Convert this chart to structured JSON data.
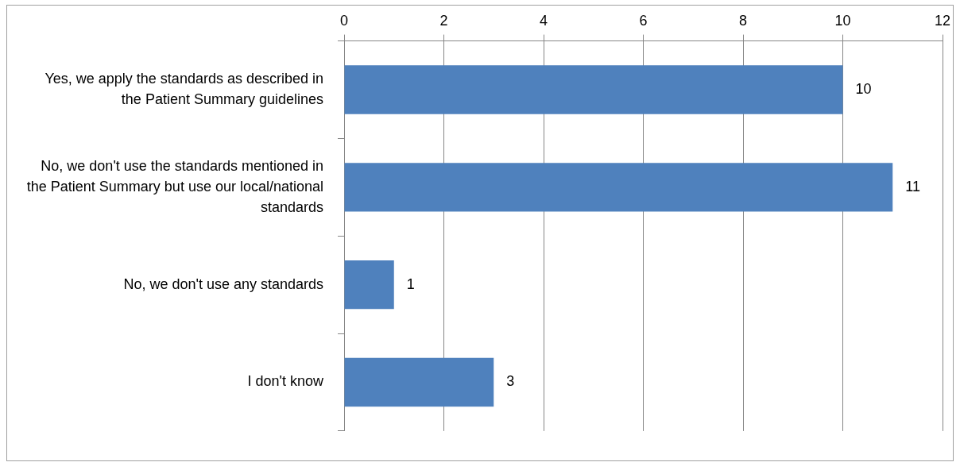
{
  "chart_data": {
    "type": "bar",
    "orientation": "horizontal",
    "categories": [
      "Yes, we apply the standards as described in the Patient Summary guidelines",
      "No, we don't use the standards mentioned in the Patient Summary but use our local/national standards",
      "No, we don't use any standards",
      "I don't know"
    ],
    "values": [
      10,
      11,
      1,
      3
    ],
    "color": "#4f81bd",
    "xlim": [
      0,
      12
    ],
    "xticks": [
      0,
      2,
      4,
      6,
      8,
      10,
      12
    ],
    "grid": "x",
    "legend": false,
    "data_labels": true
  }
}
